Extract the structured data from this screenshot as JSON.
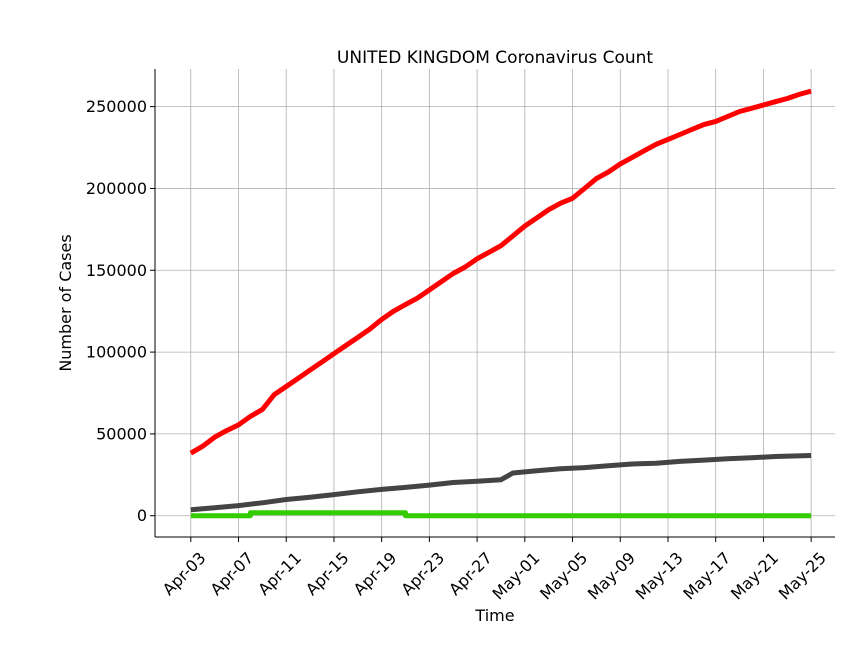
{
  "chart_data": {
    "type": "line",
    "title": "UNITED KINGDOM Coronavirus Count",
    "xlabel": "Time",
    "ylabel": "Number of Cases",
    "x_ticks": [
      "Apr-03",
      "Apr-07",
      "Apr-11",
      "Apr-15",
      "Apr-19",
      "Apr-23",
      "Apr-27",
      "May-01",
      "May-05",
      "May-09",
      "May-13",
      "May-17",
      "May-21",
      "May-25"
    ],
    "y_ticks": [
      0,
      50000,
      100000,
      150000,
      200000,
      250000
    ],
    "y_tick_labels": [
      "0",
      "50000",
      "100000",
      "150000",
      "200000",
      "250000"
    ],
    "ylim": [
      -13000,
      273000
    ],
    "xlim": [
      "2020-03-31",
      "2020-05-27"
    ],
    "grid": true,
    "series": [
      {
        "color": "#ff0000",
        "x": [
          "2020-04-03",
          "2020-04-04",
          "2020-04-05",
          "2020-04-06",
          "2020-04-07",
          "2020-04-08",
          "2020-04-09",
          "2020-04-10",
          "2020-04-11",
          "2020-04-12",
          "2020-04-13",
          "2020-04-14",
          "2020-04-15",
          "2020-04-16",
          "2020-04-17",
          "2020-04-18",
          "2020-04-19",
          "2020-04-20",
          "2020-04-21",
          "2020-04-22",
          "2020-04-23",
          "2020-04-24",
          "2020-04-25",
          "2020-04-26",
          "2020-04-27",
          "2020-04-28",
          "2020-04-29",
          "2020-04-30",
          "2020-05-01",
          "2020-05-02",
          "2020-05-03",
          "2020-05-04",
          "2020-05-05",
          "2020-05-06",
          "2020-05-07",
          "2020-05-08",
          "2020-05-09",
          "2020-05-10",
          "2020-05-11",
          "2020-05-12",
          "2020-05-13",
          "2020-05-14",
          "2020-05-15",
          "2020-05-16",
          "2020-05-17",
          "2020-05-18",
          "2020-05-19",
          "2020-05-20",
          "2020-05-21",
          "2020-05-22",
          "2020-05-23",
          "2020-05-24",
          "2020-05-25"
        ],
        "y": [
          38200,
          42500,
          48000,
          52000,
          55500,
          60700,
          65000,
          74000,
          79000,
          84000,
          89000,
          94000,
          99000,
          104000,
          109000,
          114000,
          120000,
          125000,
          129000,
          133000,
          138000,
          143000,
          148000,
          152000,
          157000,
          161000,
          165000,
          171000,
          177000,
          182000,
          187000,
          191000,
          194000,
          200000,
          206000,
          210000,
          215000,
          219000,
          223000,
          227000,
          230000,
          233000,
          236000,
          239000,
          241000,
          244000,
          247000,
          249000,
          251000,
          253000,
          255000,
          257500,
          259500
        ]
      },
      {
        "color": "#444444",
        "x": [
          "2020-04-03",
          "2020-04-05",
          "2020-04-07",
          "2020-04-09",
          "2020-04-11",
          "2020-04-13",
          "2020-04-15",
          "2020-04-17",
          "2020-04-19",
          "2020-04-21",
          "2020-04-23",
          "2020-04-25",
          "2020-04-27",
          "2020-04-29",
          "2020-04-30",
          "2020-05-02",
          "2020-05-04",
          "2020-05-06",
          "2020-05-08",
          "2020-05-10",
          "2020-05-12",
          "2020-05-14",
          "2020-05-16",
          "2020-05-18",
          "2020-05-20",
          "2020-05-22",
          "2020-05-25"
        ],
        "y": [
          3600,
          4900,
          6200,
          7900,
          9900,
          11300,
          12900,
          14600,
          16100,
          17300,
          18700,
          20300,
          21100,
          22000,
          26100,
          27500,
          28700,
          29400,
          30600,
          31600,
          32100,
          33200,
          34000,
          34800,
          35400,
          36200,
          36800
        ]
      },
      {
        "color": "#33cc00",
        "x": [
          "2020-04-03",
          "2020-04-08",
          "2020-04-08",
          "2020-04-21",
          "2020-04-21",
          "2020-05-25"
        ],
        "y": [
          0,
          0,
          1800,
          1800,
          0,
          0
        ]
      }
    ]
  }
}
